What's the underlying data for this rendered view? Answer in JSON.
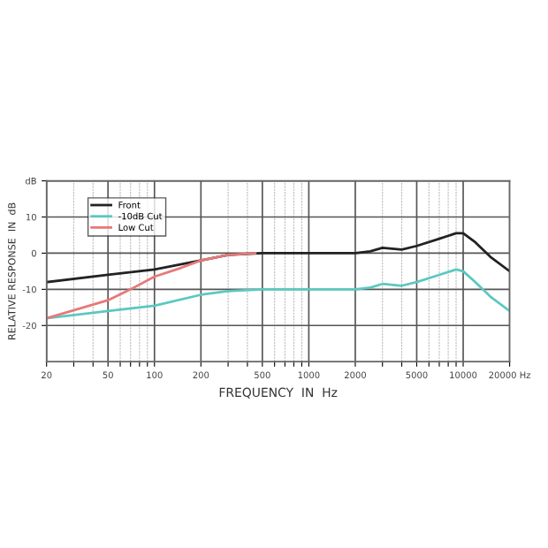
{
  "chart_data": {
    "type": "line",
    "xlabel": "FREQUENCY  IN  Hz",
    "ylabel": "RELATIVE RESPONSE  IN  dB",
    "log": "x",
    "xlim": [
      20,
      20000
    ],
    "ylim": [
      -30,
      20
    ],
    "xticks": [
      20,
      {
        "value": 30,
        "label": null
      },
      {
        "value": 40,
        "label": null
      },
      50,
      {
        "value": 60,
        "label": null
      },
      {
        "value": 70,
        "label": null
      },
      {
        "value": 80,
        "label": null
      },
      {
        "value": 90,
        "label": null
      },
      100,
      200,
      {
        "value": 300,
        "label": null
      },
      {
        "value": 400,
        "label": null
      },
      500,
      {
        "value": 600,
        "label": null
      },
      {
        "value": 700,
        "label": null
      },
      {
        "value": 800,
        "label": null
      },
      {
        "value": 900,
        "label": null
      },
      1000,
      2000,
      {
        "value": 3000,
        "label": null
      },
      {
        "value": 4000,
        "label": null
      },
      5000,
      {
        "value": 6000,
        "label": null
      },
      {
        "value": 7000,
        "label": null
      },
      {
        "value": 8000,
        "label": null
      },
      {
        "value": 9000,
        "label": null
      },
      10000,
      {
        "value": 20000,
        "label": "20000 Hz"
      }
    ],
    "yticks": [
      -20,
      -10,
      0,
      10,
      {
        "value": 20,
        "label": "dB"
      }
    ],
    "grid": true,
    "legend": "top left",
    "marker": "none",
    "line_style": "solid",
    "series": [
      {
        "name": "Front",
        "color": "#222222",
        "x": [
          20,
          50,
          100,
          200,
          300,
          500,
          1000,
          2000,
          2500,
          3000,
          4000,
          5000,
          7000,
          9000,
          10000,
          12000,
          15000,
          20000
        ],
        "values": [
          -8,
          -6,
          -4.5,
          -2,
          -0.5,
          0,
          0,
          0,
          0.5,
          1.5,
          1,
          2,
          4,
          5.5,
          5.5,
          3,
          -1,
          -5
        ]
      },
      {
        "name": "-10dB Cut",
        "color": "#5cc8c0",
        "x": [
          20,
          50,
          100,
          200,
          300,
          500,
          1000,
          2000,
          2500,
          3000,
          4000,
          5000,
          7000,
          9000,
          10000,
          12000,
          15000,
          20000
        ],
        "values": [
          -18,
          -16,
          -14.5,
          -11.5,
          -10.5,
          -10,
          -10,
          -10,
          -9.5,
          -8.5,
          -9,
          -8,
          -6,
          -4.5,
          -5,
          -8,
          -12,
          -16
        ]
      },
      {
        "name": "Low Cut",
        "color": "#e87878",
        "x": [
          20,
          50,
          70,
          100,
          150,
          200,
          300,
          450
        ],
        "values": [
          -18,
          -13,
          -10,
          -6.5,
          -4,
          -2,
          -0.5,
          0
        ]
      }
    ]
  }
}
